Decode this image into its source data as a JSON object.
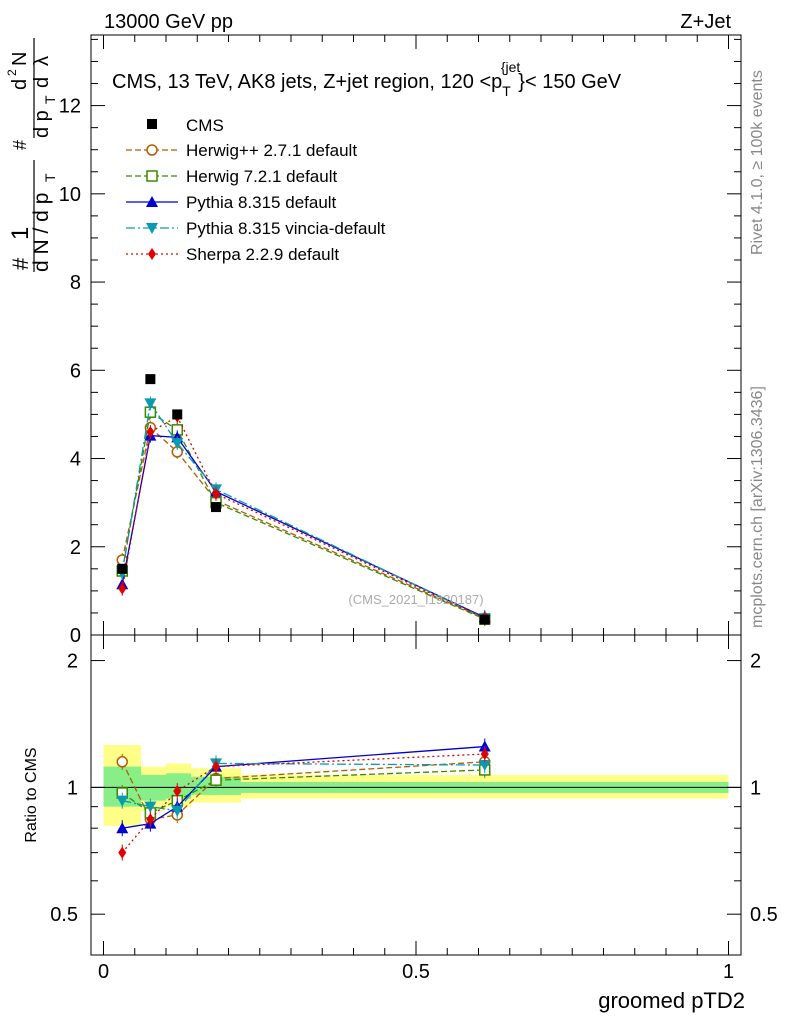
{
  "header": {
    "left": "13000 GeV pp",
    "right": "Z+Jet",
    "watermark": "(CMS_2021_I1920187)",
    "side_top": "Rivet 4.1.0, ≥ 100k events",
    "side_bottom": "mcplots.cern.ch [arXiv:1306.3436]"
  },
  "chart_data": {
    "type": "scatter",
    "title": "CMS, 13 TeV, AK8 jets, Z+jet region, 120 <p",
    "title_sup": "{jet",
    "title_sub": "T",
    "title_end": "}< 150 GeV",
    "ylabel": {
      "parts": [
        "#",
        "1",
        "d N / d p",
        "T",
        "#",
        "d p",
        "T",
        "d",
        "2",
        "N",
        "d",
        "λ"
      ]
    },
    "ratio_ylabel": "Ratio to CMS",
    "xlabel": "groomed pTD2",
    "xlim": [
      -0.02,
      1.02
    ],
    "ylim": [
      0,
      13.6
    ],
    "ratio_ylim": [
      0.4,
      2.3
    ],
    "x_ticks": [
      "0",
      "0.5",
      "1"
    ],
    "y_ticks": [
      "0",
      "2",
      "4",
      "6",
      "8",
      "10",
      "12"
    ],
    "ratio_ticks": [
      "0.5",
      "1",
      "2"
    ],
    "bins": [
      {
        "lo": 0.0,
        "hi": 0.06
      },
      {
        "lo": 0.06,
        "hi": 0.1
      },
      {
        "lo": 0.1,
        "hi": 0.14
      },
      {
        "lo": 0.14,
        "hi": 0.22
      },
      {
        "lo": 0.22,
        "hi": 1.0
      }
    ],
    "x": [
      0.03,
      0.075,
      0.118,
      0.18,
      0.61
    ],
    "data": {
      "name": "CMS",
      "values": [
        1.5,
        5.8,
        5.0,
        2.9,
        0.35
      ]
    },
    "data_band_yellow": [
      [
        0.81,
        1.26
      ],
      [
        0.88,
        1.12
      ],
      [
        0.9,
        1.14
      ],
      [
        0.92,
        1.11
      ],
      [
        0.94,
        1.07
      ]
    ],
    "data_band_green": [
      [
        0.9,
        1.12
      ],
      [
        0.93,
        1.07
      ],
      [
        0.94,
        1.08
      ],
      [
        0.96,
        1.06
      ],
      [
        0.97,
        1.03
      ]
    ],
    "series": [
      {
        "name": "Herwig++ 2.7.1 default",
        "color": "#b25d00",
        "marker": "circle-open",
        "dash": "6,3",
        "values": [
          1.7,
          4.7,
          4.15,
          3.05,
          0.38
        ],
        "ratio": [
          1.15,
          0.84,
          0.86,
          1.05,
          1.15
        ]
      },
      {
        "name": "Herwig 7.2.1 default",
        "color": "#3a8a00",
        "marker": "square-open",
        "dash": "6,3",
        "values": [
          1.45,
          5.05,
          4.65,
          3.0,
          0.36
        ],
        "ratio": [
          0.97,
          0.87,
          0.93,
          1.04,
          1.1
        ]
      },
      {
        "name": "Pythia 8.315 default",
        "color": "#0000d0",
        "marker": "triangle-up",
        "dash": "",
        "values": [
          1.15,
          4.52,
          4.48,
          3.25,
          0.4
        ],
        "ratio": [
          0.8,
          0.82,
          0.9,
          1.12,
          1.25
        ]
      },
      {
        "name": "Pythia 8.315 vincia-default",
        "color": "#0a9ab0",
        "marker": "triangle-down",
        "dash": "9,3,2,3",
        "values": [
          1.4,
          5.25,
          4.35,
          3.3,
          0.38
        ],
        "ratio": [
          0.93,
          0.9,
          0.88,
          1.14,
          1.13
        ]
      },
      {
        "name": "Sherpa 2.2.9 default",
        "color": "#e00000",
        "marker": "diamond",
        "dash": "2,3",
        "values": [
          1.05,
          4.6,
          4.95,
          3.2,
          0.38
        ],
        "ratio": [
          0.7,
          0.84,
          0.98,
          1.12,
          1.2
        ]
      }
    ]
  }
}
